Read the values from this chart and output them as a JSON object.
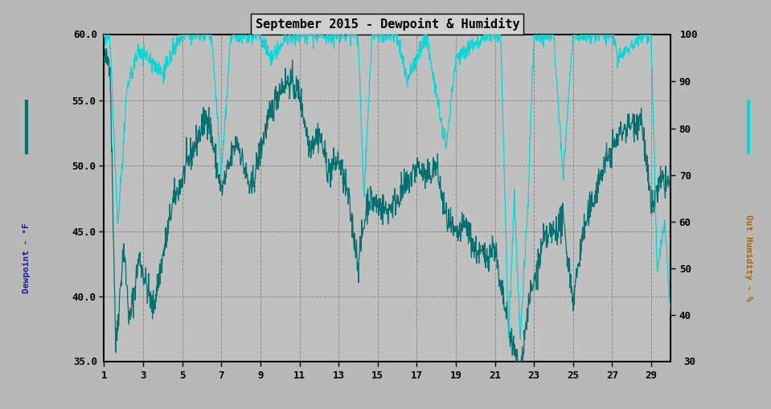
{
  "title": "September 2015 - Dewpoint & Humidity",
  "ylabel_left": "Dewpoint - °F",
  "ylabel_right": "Out Humidity - %",
  "ylim_left": [
    35.0,
    60.0
  ],
  "ylim_right": [
    30,
    100
  ],
  "yticks_left": [
    40.0,
    45.0,
    50.0,
    55.0
  ],
  "yticks_right": [
    40,
    50,
    60,
    70,
    80,
    90
  ],
  "xlim": [
    1,
    30
  ],
  "xticks": [
    1,
    3,
    5,
    7,
    9,
    11,
    13,
    15,
    17,
    19,
    21,
    23,
    25,
    27,
    29
  ],
  "background_color": "#b8b8b8",
  "plot_background": "#c0c0c0",
  "dewpoint_color": "#007070",
  "humidity_color": "#00d8d8",
  "grid_color": "#888888",
  "box_color": "#d0d0d0",
  "label_box_color": "#e8e8e8"
}
